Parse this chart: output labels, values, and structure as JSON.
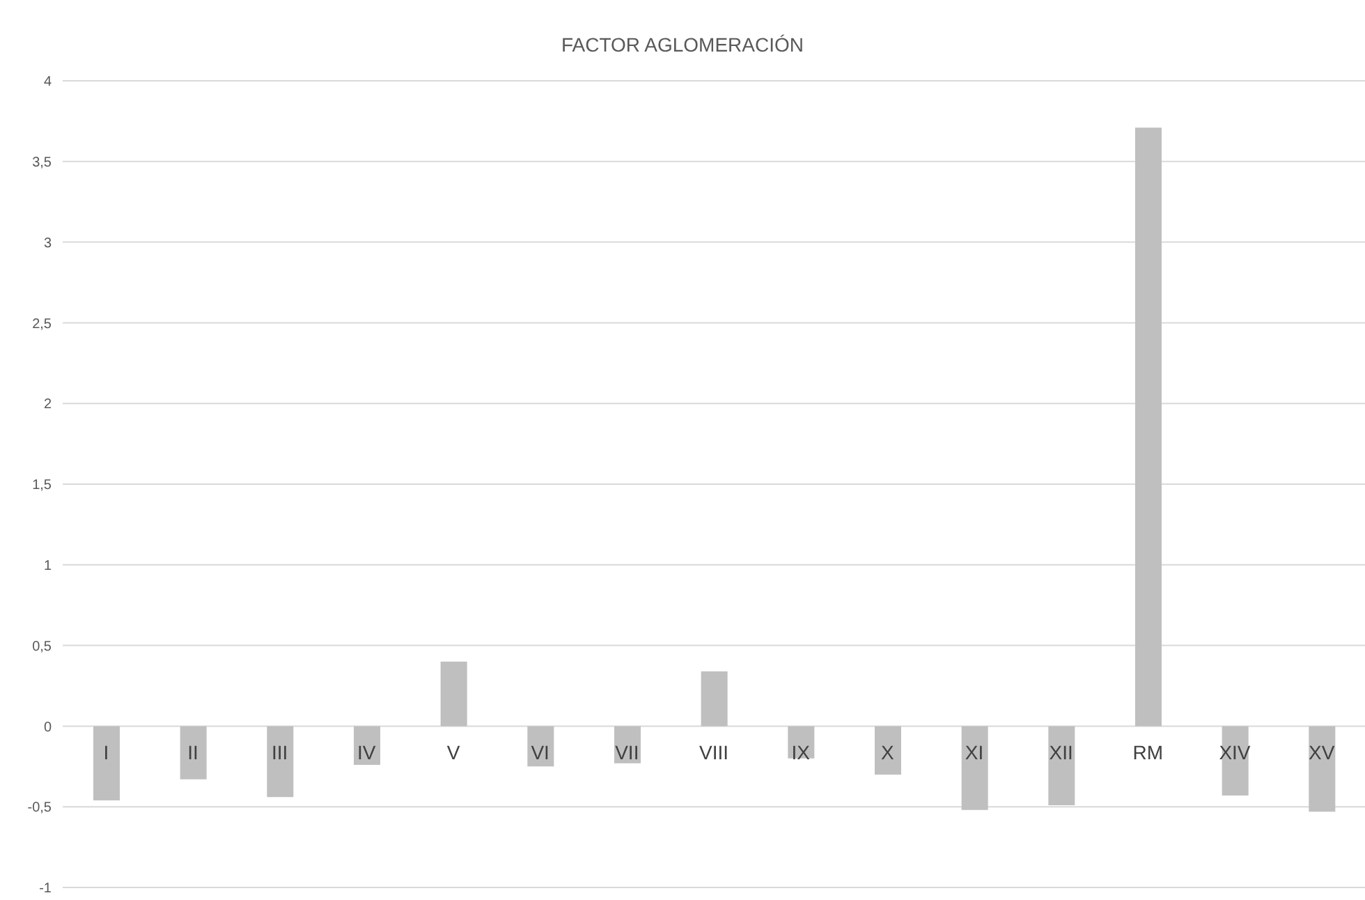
{
  "chart_data": {
    "type": "bar",
    "title": "FACTOR AGLOMERACIÓN",
    "categories": [
      "I",
      "II",
      "III",
      "IV",
      "V",
      "VI",
      "VII",
      "VIII",
      "IX",
      "X",
      "XI",
      "XII",
      "RM",
      "XIV",
      "XV"
    ],
    "values": [
      -0.46,
      -0.33,
      -0.44,
      -0.24,
      0.4,
      -0.25,
      -0.23,
      0.34,
      -0.2,
      -0.3,
      -0.52,
      -0.49,
      3.71,
      -0.43,
      -0.53
    ],
    "color": "#bfbfbf",
    "ylim": [
      -1,
      4
    ],
    "yticks": [
      {
        "value": -1,
        "label": "-1"
      },
      {
        "value": -0.5,
        "label": "-0,5"
      },
      {
        "value": 0,
        "label": "0"
      },
      {
        "value": 0.5,
        "label": "0,5"
      },
      {
        "value": 1,
        "label": "1"
      },
      {
        "value": 1.5,
        "label": "1,5"
      },
      {
        "value": 2,
        "label": "2"
      },
      {
        "value": 2.5,
        "label": "2,5"
      },
      {
        "value": 3,
        "label": "3"
      },
      {
        "value": 3.5,
        "label": "3,5"
      },
      {
        "value": 4,
        "label": "4"
      }
    ],
    "grid": "y"
  }
}
